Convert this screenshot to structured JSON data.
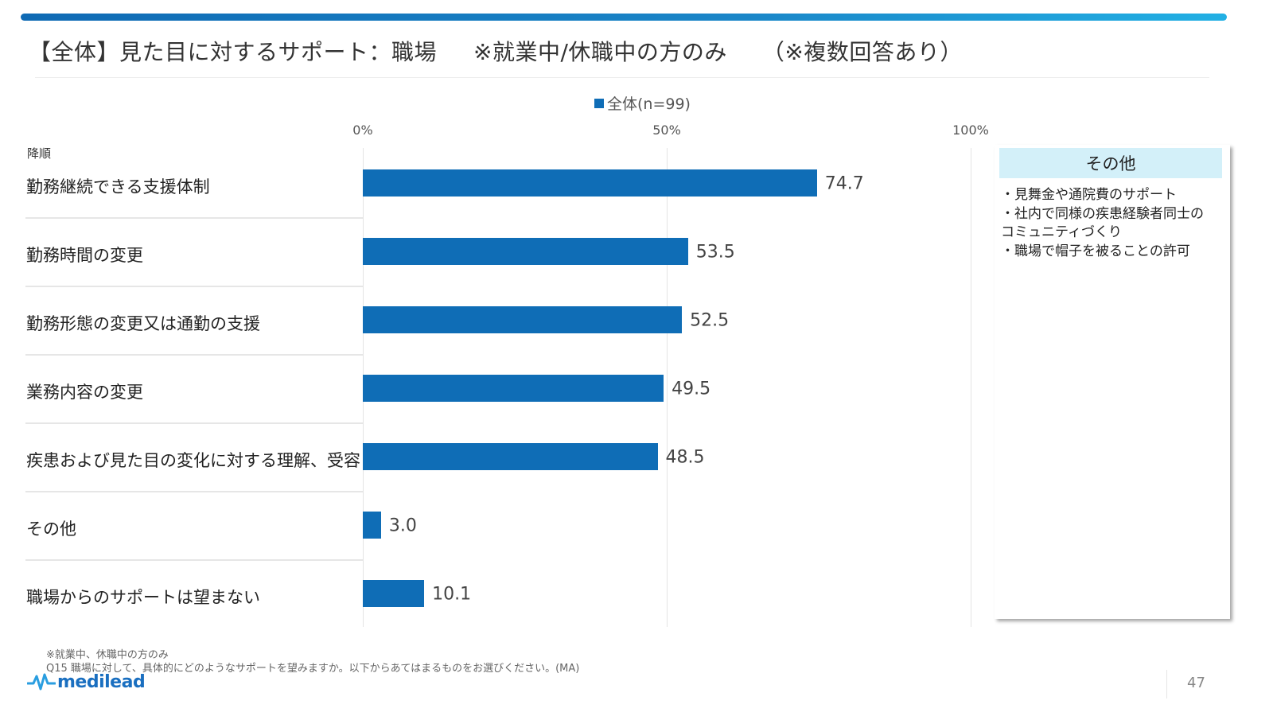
{
  "header": {
    "title_main": "【全体】見た目に対するサポート：職場",
    "title_note": "※就業中/休職中の方のみ",
    "title_multi": "（※複数回答あり）"
  },
  "sort_label": "降順",
  "other_box": {
    "heading": "その他",
    "lines": [
      "・見舞金や通院費のサポート",
      "・社内で同様の疾患経験者同士の",
      "コミュニティづくり",
      "・職場で帽子を被ることの許可"
    ]
  },
  "footnotes": [
    "※就業中、休職中の方のみ",
    "Q15 職場に対して、具体的にどのようなサポートを望みますか。以下からあてはまるものをお選びください。(MA)"
  ],
  "logo": {
    "text": "medilead",
    "icon": "heartbeat-pulse-icon"
  },
  "page_number": "47",
  "colors": {
    "bar": "#0f6db6",
    "accent_header": "#1a86c8",
    "other_head_bg": "#d3f0f9"
  },
  "chart_data": {
    "type": "bar",
    "orientation": "horizontal",
    "legend": {
      "entries": [
        "全体(n=99)"
      ],
      "placement": "top-center"
    },
    "categories": [
      "勤務継続できる支援体制",
      "勤務時間の変更",
      "勤務形態の変更又は通勤の支援",
      "業務内容の変更",
      "疾患および見た目の変化に対する理解、受容",
      "その他",
      "職場からのサポートは望まない"
    ],
    "series": [
      {
        "name": "全体(n=99)",
        "values": [
          74.7,
          53.5,
          52.5,
          49.5,
          48.5,
          3.0,
          10.1
        ]
      }
    ],
    "value_labels": [
      "74.7",
      "53.5",
      "52.5",
      "49.5",
      "48.5",
      "3.0",
      "10.1"
    ],
    "x_ticks": [
      "0%",
      "50%",
      "100%"
    ],
    "xlim": [
      0,
      100
    ],
    "grid": true,
    "xlabel": "",
    "ylabel": "",
    "title": "【全体】見た目に対するサポート：職場"
  }
}
